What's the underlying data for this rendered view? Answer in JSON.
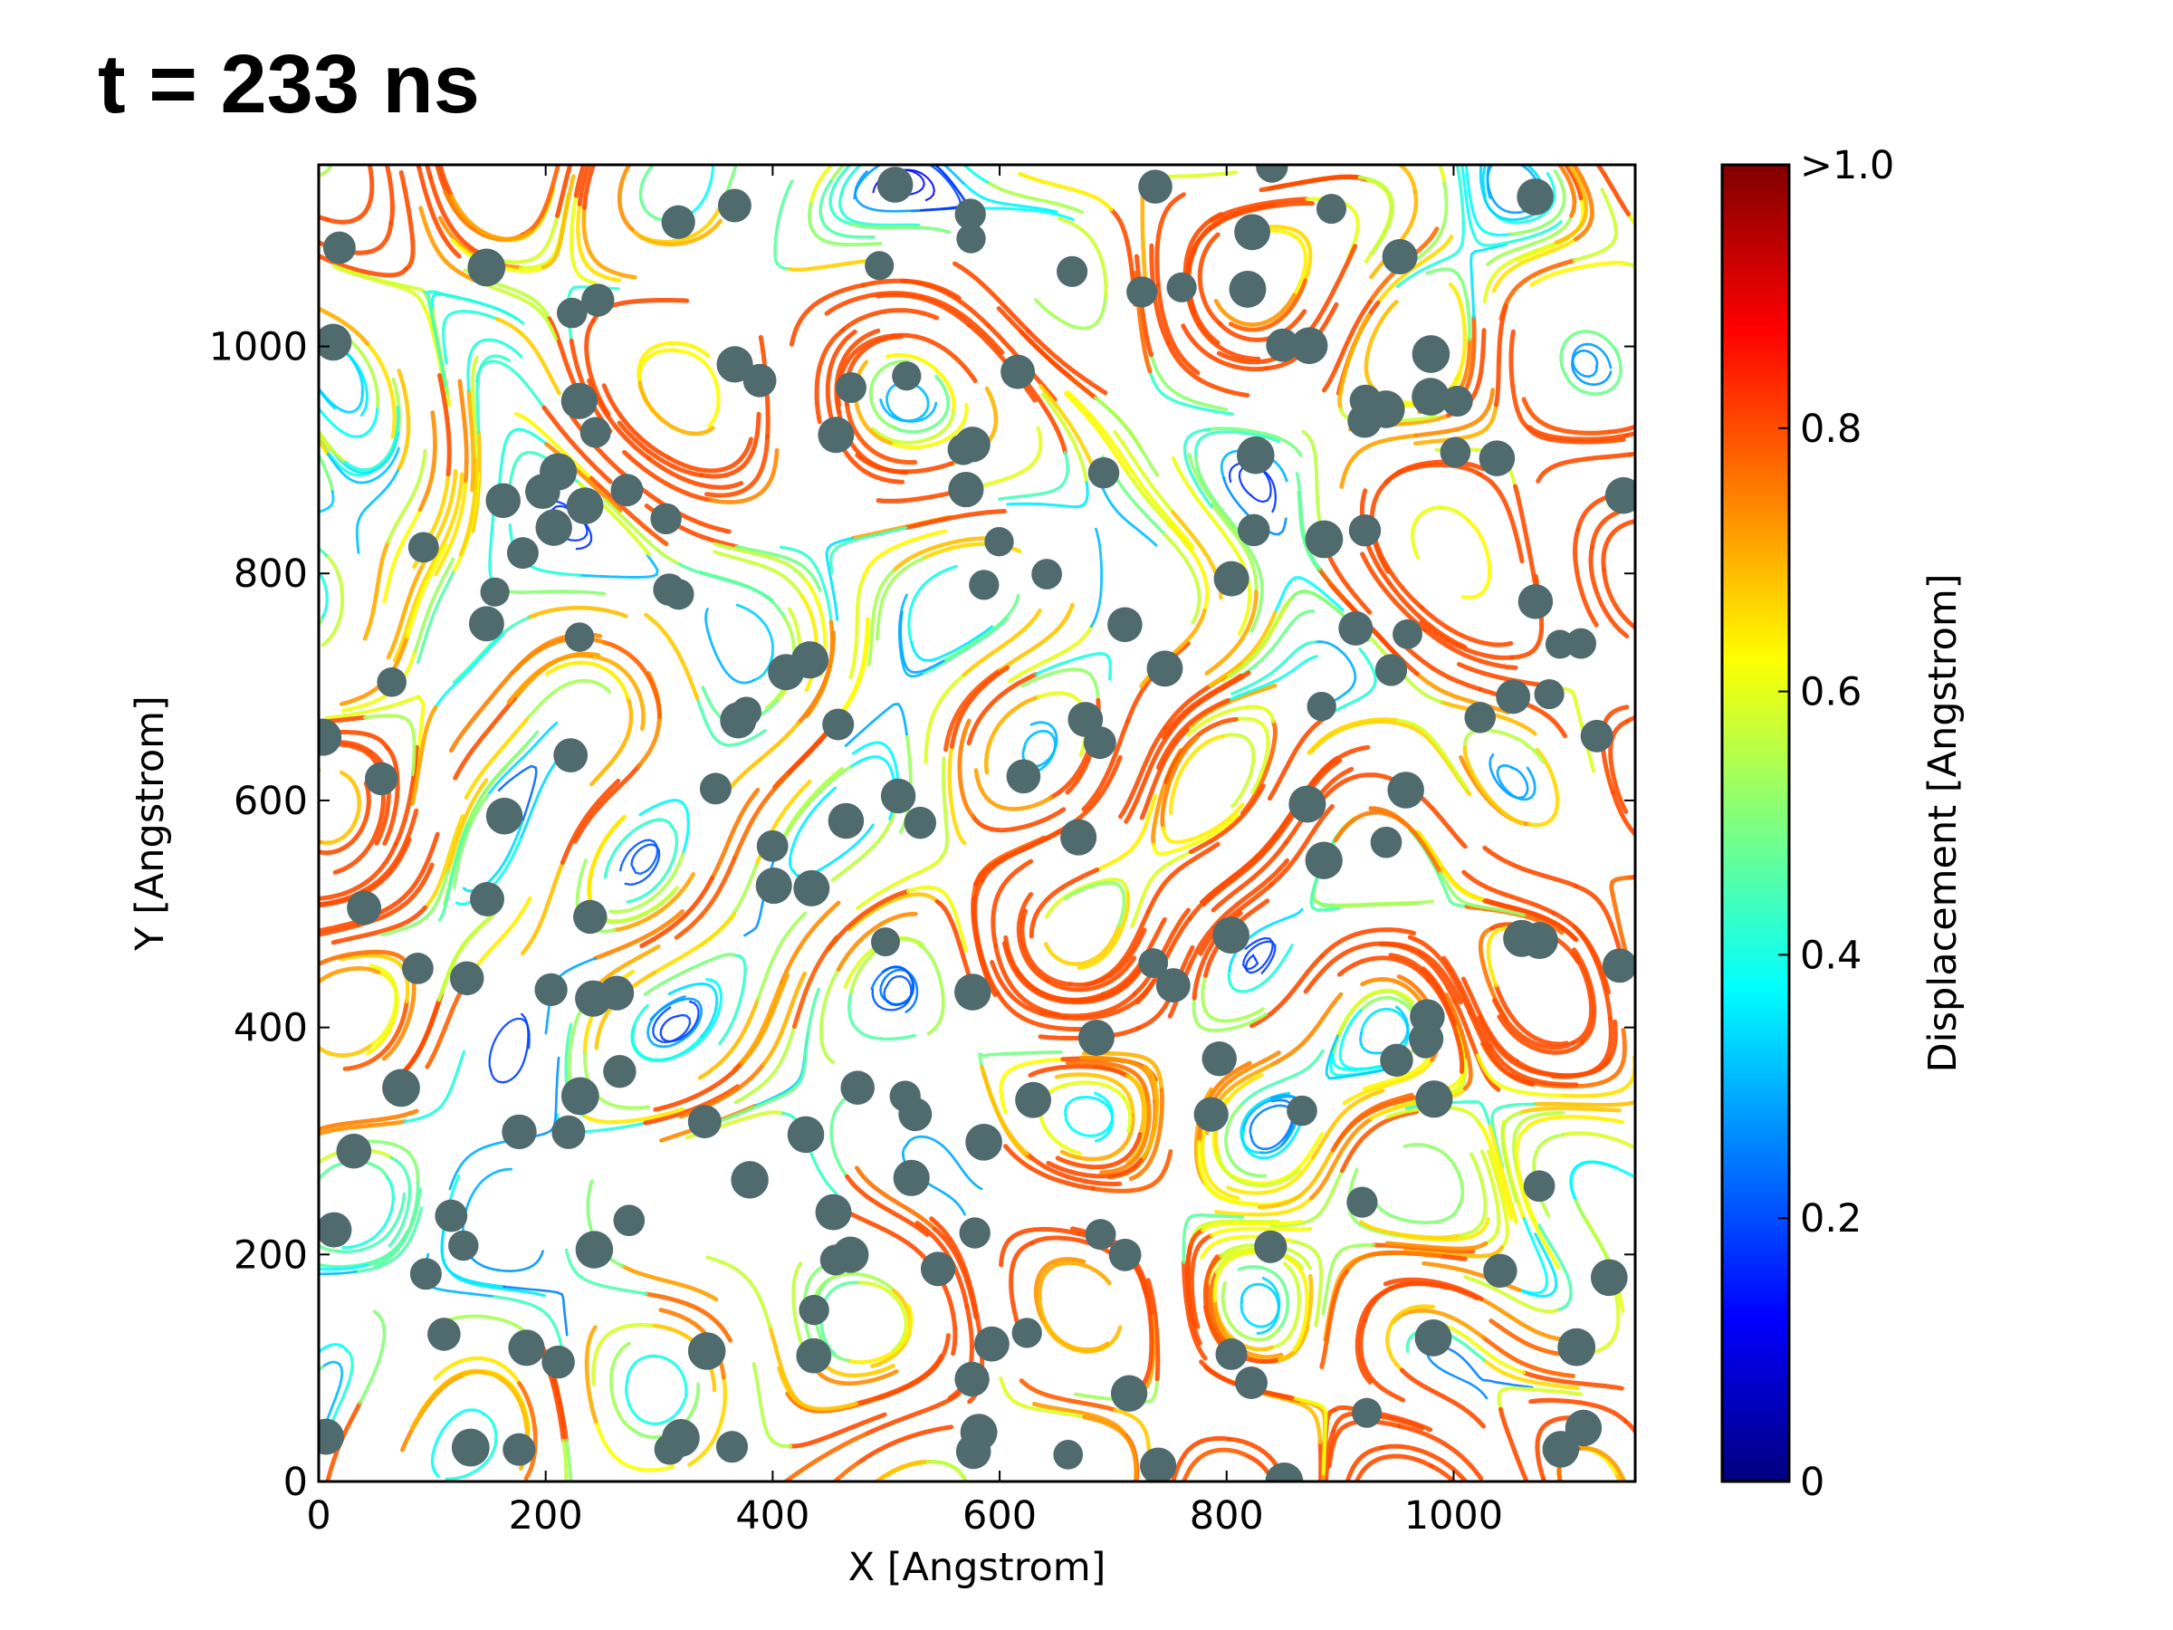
{
  "chart_data": {
    "type": "streamplot",
    "title": "t = 233 ns",
    "x_label": "X [Angstrom]",
    "y_label": "Y [Angstrom]",
    "xlim": [
      0,
      1160
    ],
    "ylim": [
      0,
      1160
    ],
    "xticks": [
      0,
      200,
      400,
      600,
      800,
      1000
    ],
    "yticks": [
      0,
      200,
      400,
      600,
      800,
      1000
    ],
    "colorbar": {
      "label": "Displacement [Angstrom]",
      "clim": [
        0,
        1
      ],
      "ticks": [
        0,
        0.2,
        0.4,
        0.6,
        0.8,
        {
          "value": 1,
          "label": ">1.0"
        }
      ],
      "colormap": [
        "#00007f",
        "#0000ff",
        "#007fff",
        "#00ffff",
        "#7fff7f",
        "#ffff00",
        "#ff7f00",
        "#ff0000",
        "#7f0000"
      ]
    },
    "particle_color": "#4f6b6e"
  }
}
